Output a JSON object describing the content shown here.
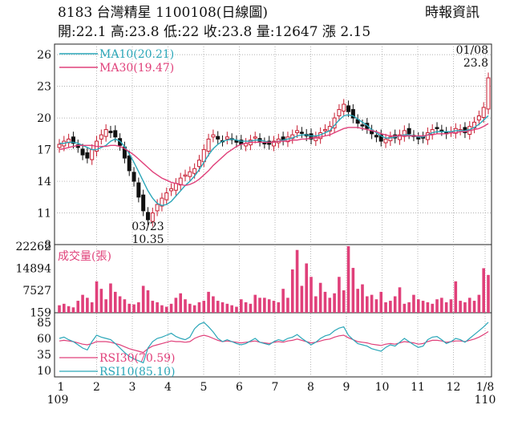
{
  "header": {
    "title": "8183  台灣精星 1100108(日線圖)",
    "source": "時報資訊",
    "quote_line": "開:22.1 高:23.8 低:22 收:23.8 量:12647 漲 2.15"
  },
  "chart_data": {
    "type": "candlestick",
    "x_ticks": [
      "1",
      "2",
      "3",
      "4",
      "5",
      "6",
      "7",
      "8",
      "9",
      "10",
      "11",
      "12",
      "1/8"
    ],
    "x_year_labels": [
      "109",
      "110"
    ],
    "price_panel": {
      "y_ticks": [
        "26",
        "23",
        "20",
        "17",
        "14",
        "11",
        "8"
      ],
      "ylim": [
        8,
        27
      ],
      "legend": [
        {
          "name": "MA10(20.21)",
          "color": "#2aa6b8"
        },
        {
          "name": "MA30(19.47)",
          "color": "#e0407a"
        }
      ],
      "annotations": [
        {
          "label": "01/08",
          "value": "23.8",
          "date": "1/8"
        },
        {
          "label": "03/23",
          "value": "10.35",
          "date": "03/23"
        }
      ],
      "close": [
        17.5,
        17.8,
        18.0,
        17.6,
        17.2,
        16.5,
        16.2,
        17.0,
        17.8,
        18.4,
        18.9,
        18.6,
        18.2,
        17.4,
        16.2,
        15.0,
        14.0,
        12.5,
        11.2,
        10.35,
        11.0,
        11.8,
        12.4,
        12.9,
        13.3,
        13.8,
        14.3,
        14.6,
        14.9,
        15.2,
        16.0,
        17.0,
        18.0,
        18.4,
        18.0,
        17.8,
        18.2,
        18.0,
        17.7,
        17.5,
        17.6,
        17.9,
        18.2,
        17.8,
        17.6,
        17.5,
        17.8,
        18.0,
        17.9,
        18.2,
        18.4,
        18.8,
        18.6,
        18.3,
        18.0,
        18.2,
        18.6,
        18.9,
        19.2,
        20.0,
        20.8,
        21.3,
        20.6,
        20.0,
        19.5,
        19.3,
        19.0,
        18.5,
        18.2,
        17.8,
        18.0,
        18.2,
        18.1,
        18.4,
        18.8,
        18.5,
        18.3,
        18.0,
        18.1,
        18.6,
        18.9,
        19.0,
        18.8,
        18.5,
        18.7,
        19.0,
        18.9,
        18.6,
        19.2,
        19.6,
        20.2,
        21.0,
        23.8
      ],
      "ma10": [
        17.6,
        17.6,
        17.7,
        17.7,
        17.6,
        17.4,
        17.2,
        17.0,
        17.0,
        17.2,
        17.4,
        17.8,
        18.0,
        17.8,
        17.3,
        16.6,
        15.8,
        14.9,
        14.0,
        13.1,
        12.4,
        11.9,
        11.7,
        11.8,
        12.1,
        12.6,
        13.1,
        13.6,
        14.0,
        14.5,
        15.1,
        15.8,
        16.5,
        17.1,
        17.5,
        17.8,
        17.9,
        18.0,
        17.9,
        17.8,
        17.8,
        17.8,
        17.9,
        17.9,
        17.8,
        17.7,
        17.7,
        17.8,
        17.9,
        18.0,
        18.1,
        18.3,
        18.4,
        18.4,
        18.3,
        18.3,
        18.4,
        18.6,
        18.8,
        19.3,
        19.8,
        20.2,
        20.3,
        20.2,
        19.9,
        19.6,
        19.3,
        18.9,
        18.6,
        18.3,
        18.1,
        18.1,
        18.2,
        18.3,
        18.4,
        18.4,
        18.3,
        18.2,
        18.2,
        18.4,
        18.6,
        18.7,
        18.7,
        18.7,
        18.7,
        18.8,
        18.8,
        18.8,
        18.9,
        19.1,
        19.4,
        19.8,
        20.21
      ],
      "ma30": [
        17.0,
        17.1,
        17.2,
        17.3,
        17.4,
        17.4,
        17.4,
        17.4,
        17.3,
        17.3,
        17.3,
        17.4,
        17.4,
        17.3,
        17.1,
        16.8,
        16.5,
        16.1,
        15.7,
        15.3,
        14.9,
        14.6,
        14.3,
        14.1,
        13.9,
        13.8,
        13.7,
        13.6,
        13.7,
        13.9,
        14.2,
        14.6,
        15.0,
        15.5,
        15.9,
        16.3,
        16.7,
        17.0,
        17.3,
        17.5,
        17.6,
        17.7,
        17.7,
        17.7,
        17.7,
        17.7,
        17.7,
        17.8,
        17.8,
        17.8,
        17.9,
        17.9,
        18.0,
        18.0,
        18.1,
        18.1,
        18.2,
        18.3,
        18.4,
        18.6,
        18.8,
        19.0,
        19.1,
        19.1,
        19.1,
        19.0,
        18.9,
        18.8,
        18.7,
        18.5,
        18.4,
        18.3,
        18.3,
        18.3,
        18.3,
        18.3,
        18.3,
        18.3,
        18.3,
        18.4,
        18.4,
        18.5,
        18.5,
        18.5,
        18.6,
        18.6,
        18.7,
        18.7,
        18.8,
        18.9,
        19.0,
        19.2,
        19.47
      ]
    },
    "volume_panel": {
      "label": "成交量(張)",
      "y_ticks": [
        "22262",
        "14894",
        "7527",
        "159"
      ],
      "ylim": [
        0,
        22262
      ],
      "values": [
        2500,
        3000,
        2200,
        1800,
        4000,
        6000,
        5000,
        3500,
        10500,
        8000,
        4500,
        9800,
        7000,
        5500,
        4500,
        3000,
        2800,
        3500,
        9000,
        7500,
        4000,
        3500,
        2500,
        2000,
        3000,
        5000,
        6500,
        4500,
        3000,
        2500,
        3500,
        4000,
        7000,
        5500,
        4000,
        3500,
        3000,
        2500,
        2000,
        4500,
        3500,
        3000,
        6000,
        5000,
        5000,
        4500,
        4000,
        3500,
        8000,
        5000,
        14500,
        21000,
        9000,
        16500,
        12000,
        5500,
        10000,
        7000,
        5000,
        6500,
        12000,
        7500,
        22262,
        15000,
        8000,
        9500,
        5500,
        6000,
        4500,
        7000,
        3500,
        4000,
        5500,
        8500,
        3000,
        3500,
        6000,
        4500,
        4000,
        3500,
        3000,
        4500,
        5000,
        3500,
        4500,
        10500,
        4000,
        3500,
        5000,
        4000,
        6000,
        14894,
        12647
      ]
    },
    "rsi_panel": {
      "y_ticks": [
        "85",
        "60",
        "35",
        "10"
      ],
      "ylim": [
        0,
        100
      ],
      "legend": [
        {
          "name": "RSI30(70.59)",
          "color": "#e0407a"
        },
        {
          "name": "RSI10(85.10)",
          "color": "#2aa6b8"
        }
      ],
      "rsi10": [
        60,
        62,
        58,
        55,
        50,
        45,
        42,
        55,
        65,
        62,
        60,
        58,
        52,
        45,
        38,
        32,
        28,
        25,
        22,
        45,
        55,
        60,
        62,
        65,
        68,
        63,
        60,
        58,
        62,
        75,
        82,
        85,
        78,
        70,
        60,
        55,
        58,
        55,
        52,
        50,
        52,
        56,
        60,
        54,
        52,
        50,
        55,
        58,
        56,
        60,
        62,
        66,
        60,
        55,
        50,
        54,
        60,
        64,
        66,
        72,
        76,
        78,
        65,
        58,
        52,
        50,
        48,
        44,
        42,
        40,
        46,
        50,
        48,
        54,
        60,
        55,
        50,
        46,
        48,
        58,
        62,
        63,
        58,
        52,
        55,
        60,
        58,
        54,
        60,
        66,
        72,
        78,
        85.1
      ],
      "rsi30": [
        56,
        57,
        56,
        55,
        53,
        51,
        50,
        52,
        55,
        55,
        55,
        54,
        52,
        50,
        47,
        44,
        42,
        40,
        38,
        44,
        48,
        50,
        52,
        54,
        56,
        55,
        55,
        54,
        55,
        60,
        63,
        65,
        63,
        60,
        57,
        55,
        56,
        55,
        54,
        53,
        54,
        55,
        56,
        54,
        53,
        52,
        54,
        55,
        54,
        56,
        57,
        59,
        57,
        55,
        53,
        54,
        56,
        58,
        59,
        62,
        64,
        65,
        61,
        58,
        55,
        54,
        53,
        51,
        50,
        49,
        51,
        52,
        51,
        53,
        55,
        54,
        53,
        51,
        52,
        55,
        57,
        57,
        56,
        54,
        55,
        56,
        56,
        55,
        57,
        59,
        62,
        66,
        70.59
      ]
    }
  }
}
